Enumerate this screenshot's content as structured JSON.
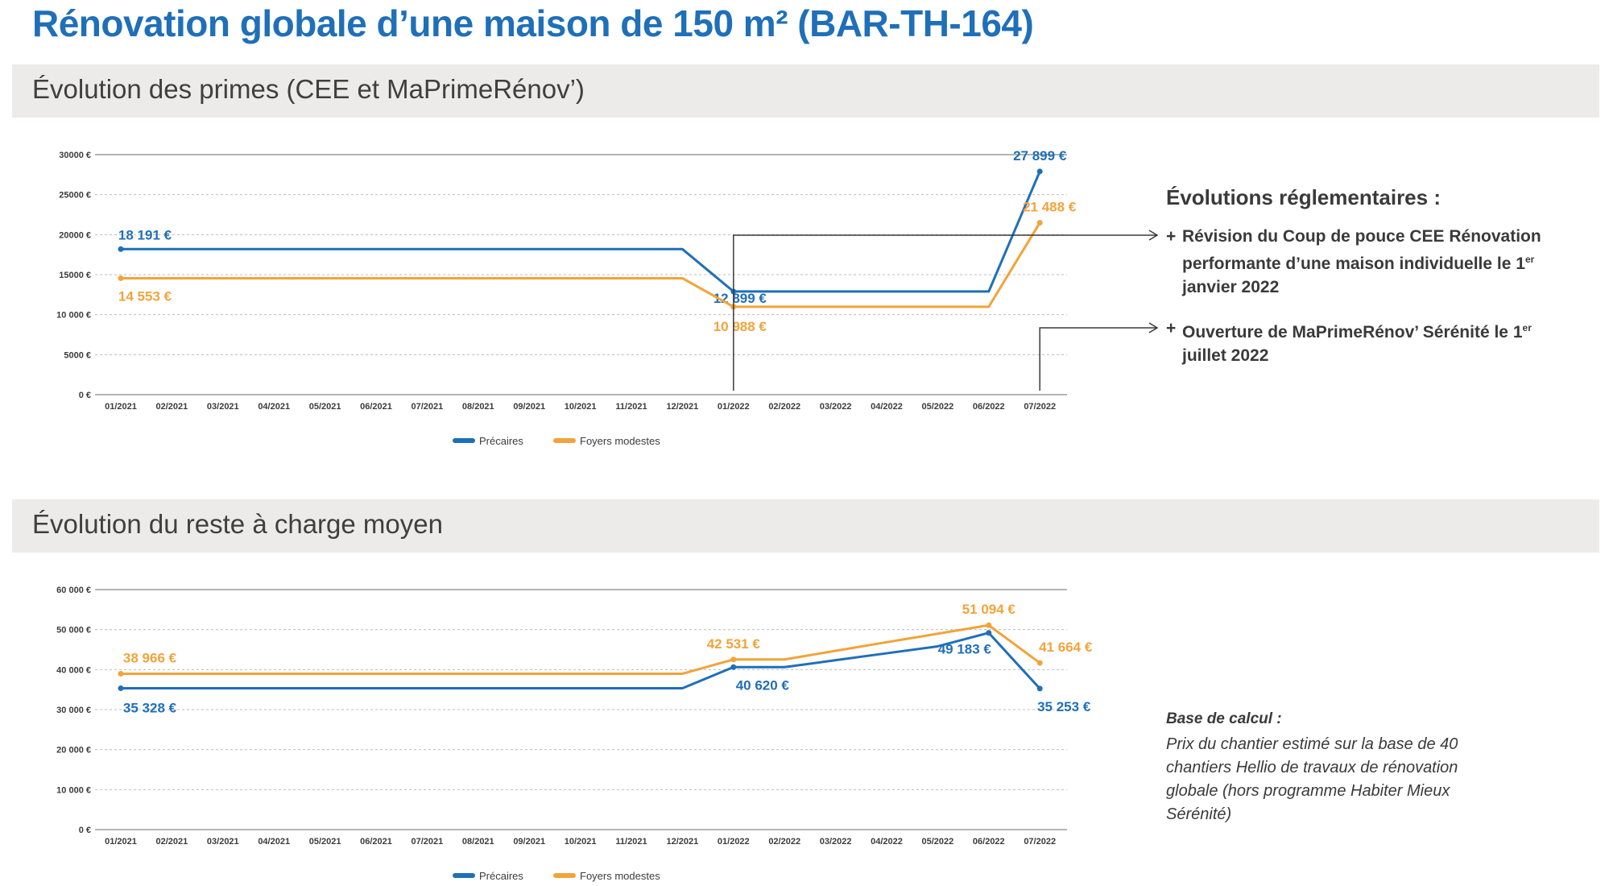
{
  "page": {
    "title": "Rénovation globale d’une maison de 150 m² (BAR-TH-164)"
  },
  "sections": {
    "primes_title": "Évolution des primes (CEE et MaPrimeRénov’)",
    "reste_title": "Évolution du reste à charge moyen"
  },
  "side": {
    "evolutions_title": "Évolutions réglementaires :",
    "note1_prefix": "+",
    "note1_text": "Révision du Coup de pouce CEE Rénovation performante d’une maison individuelle le 1er janvier 2022",
    "note2_prefix": "+",
    "note2_text": "Ouverture de MaPrimeRénov’ Sérénité le 1er juillet 2022",
    "base_title": "Base de calcul :",
    "base_text": "Prix du chantier estimé sur la base de 40 chantiers Hellio de travaux de rénovation globale (hors programme Habiter Mieux Sérénité)"
  },
  "colors": {
    "blue": "#1f6fb9",
    "orange": "#f2a33a",
    "title_blue": "#1f6fb9",
    "band": "#ecebea"
  },
  "chart_data": [
    {
      "type": "line",
      "title": "Évolution des primes (CEE et MaPrimeRénov’)",
      "categories": [
        "01/2021",
        "02/2021",
        "03/2021",
        "04/2021",
        "05/2021",
        "06/2021",
        "07/2021",
        "08/2021",
        "09/2021",
        "10/2021",
        "11/2021",
        "12/2021",
        "01/2022",
        "02/2022",
        "03/2022",
        "04/2022",
        "05/2022",
        "06/2022",
        "07/2022"
      ],
      "y_ticks": [
        "0 €",
        "5000 €",
        "10 000 €",
        "15000 €",
        "20000 €",
        "25000 €",
        "30000 €"
      ],
      "ylim": [
        0,
        30000
      ],
      "grid": true,
      "legend_position": "bottom-center",
      "series": [
        {
          "name": "Précaires",
          "color": "#1f6fb9",
          "values": [
            18191,
            18191,
            18191,
            18191,
            18191,
            18191,
            18191,
            18191,
            18191,
            18191,
            18191,
            18191,
            12899,
            12899,
            12899,
            12899,
            12899,
            12899,
            27899
          ],
          "labels": [
            {
              "index": 0,
              "text": "18 191 €"
            },
            {
              "index": 12,
              "text": "12 899 €"
            },
            {
              "index": 18,
              "text": "27 899 €"
            }
          ]
        },
        {
          "name": "Foyers modestes",
          "color": "#f2a33a",
          "values": [
            14553,
            14553,
            14553,
            14553,
            14553,
            14553,
            14553,
            14553,
            14553,
            14553,
            14553,
            14553,
            10988,
            10988,
            10988,
            10988,
            10988,
            10988,
            21488
          ],
          "labels": [
            {
              "index": 0,
              "text": "14 553 €"
            },
            {
              "index": 12,
              "text": "10 988 €"
            },
            {
              "index": 18,
              "text": "21 488 €"
            }
          ]
        }
      ]
    },
    {
      "type": "line",
      "title": "Évolution du reste à charge moyen",
      "categories": [
        "01/2021",
        "02/2021",
        "03/2021",
        "04/2021",
        "05/2021",
        "06/2021",
        "07/2021",
        "08/2021",
        "09/2021",
        "10/2021",
        "11/2021",
        "12/2021",
        "01/2022",
        "02/2022",
        "03/2022",
        "04/2022",
        "05/2022",
        "06/2022",
        "07/2022"
      ],
      "y_ticks": [
        "0 €",
        "10 000 €",
        "20 000 €",
        "30 000 €",
        "40 000 €",
        "50 000 €",
        "60 000 €"
      ],
      "ylim": [
        0,
        60000
      ],
      "grid": true,
      "legend_position": "bottom-center",
      "series": [
        {
          "name": "Précaires",
          "color": "#1f6fb9",
          "values": [
            35328,
            35328,
            35328,
            35328,
            35328,
            35328,
            35328,
            35328,
            35328,
            35328,
            35328,
            35328,
            40620,
            40620,
            42350,
            44080,
            45810,
            49183,
            35253
          ],
          "labels": [
            {
              "index": 0,
              "text": "35 328 €"
            },
            {
              "index": 12,
              "text": "40 620 €"
            },
            {
              "index": 17,
              "text": "49 183 €"
            },
            {
              "index": 18,
              "text": "35 253 €"
            }
          ]
        },
        {
          "name": "Foyers modestes",
          "color": "#f2a33a",
          "values": [
            38966,
            38966,
            38966,
            38966,
            38966,
            38966,
            38966,
            38966,
            38966,
            38966,
            38966,
            38966,
            42531,
            42531,
            44700,
            46850,
            48970,
            51094,
            41664
          ],
          "labels": [
            {
              "index": 0,
              "text": "38 966 €"
            },
            {
              "index": 12,
              "text": "42 531 €"
            },
            {
              "index": 17,
              "text": "51 094 €"
            },
            {
              "index": 18,
              "text": "41 664 €"
            }
          ]
        }
      ]
    }
  ]
}
